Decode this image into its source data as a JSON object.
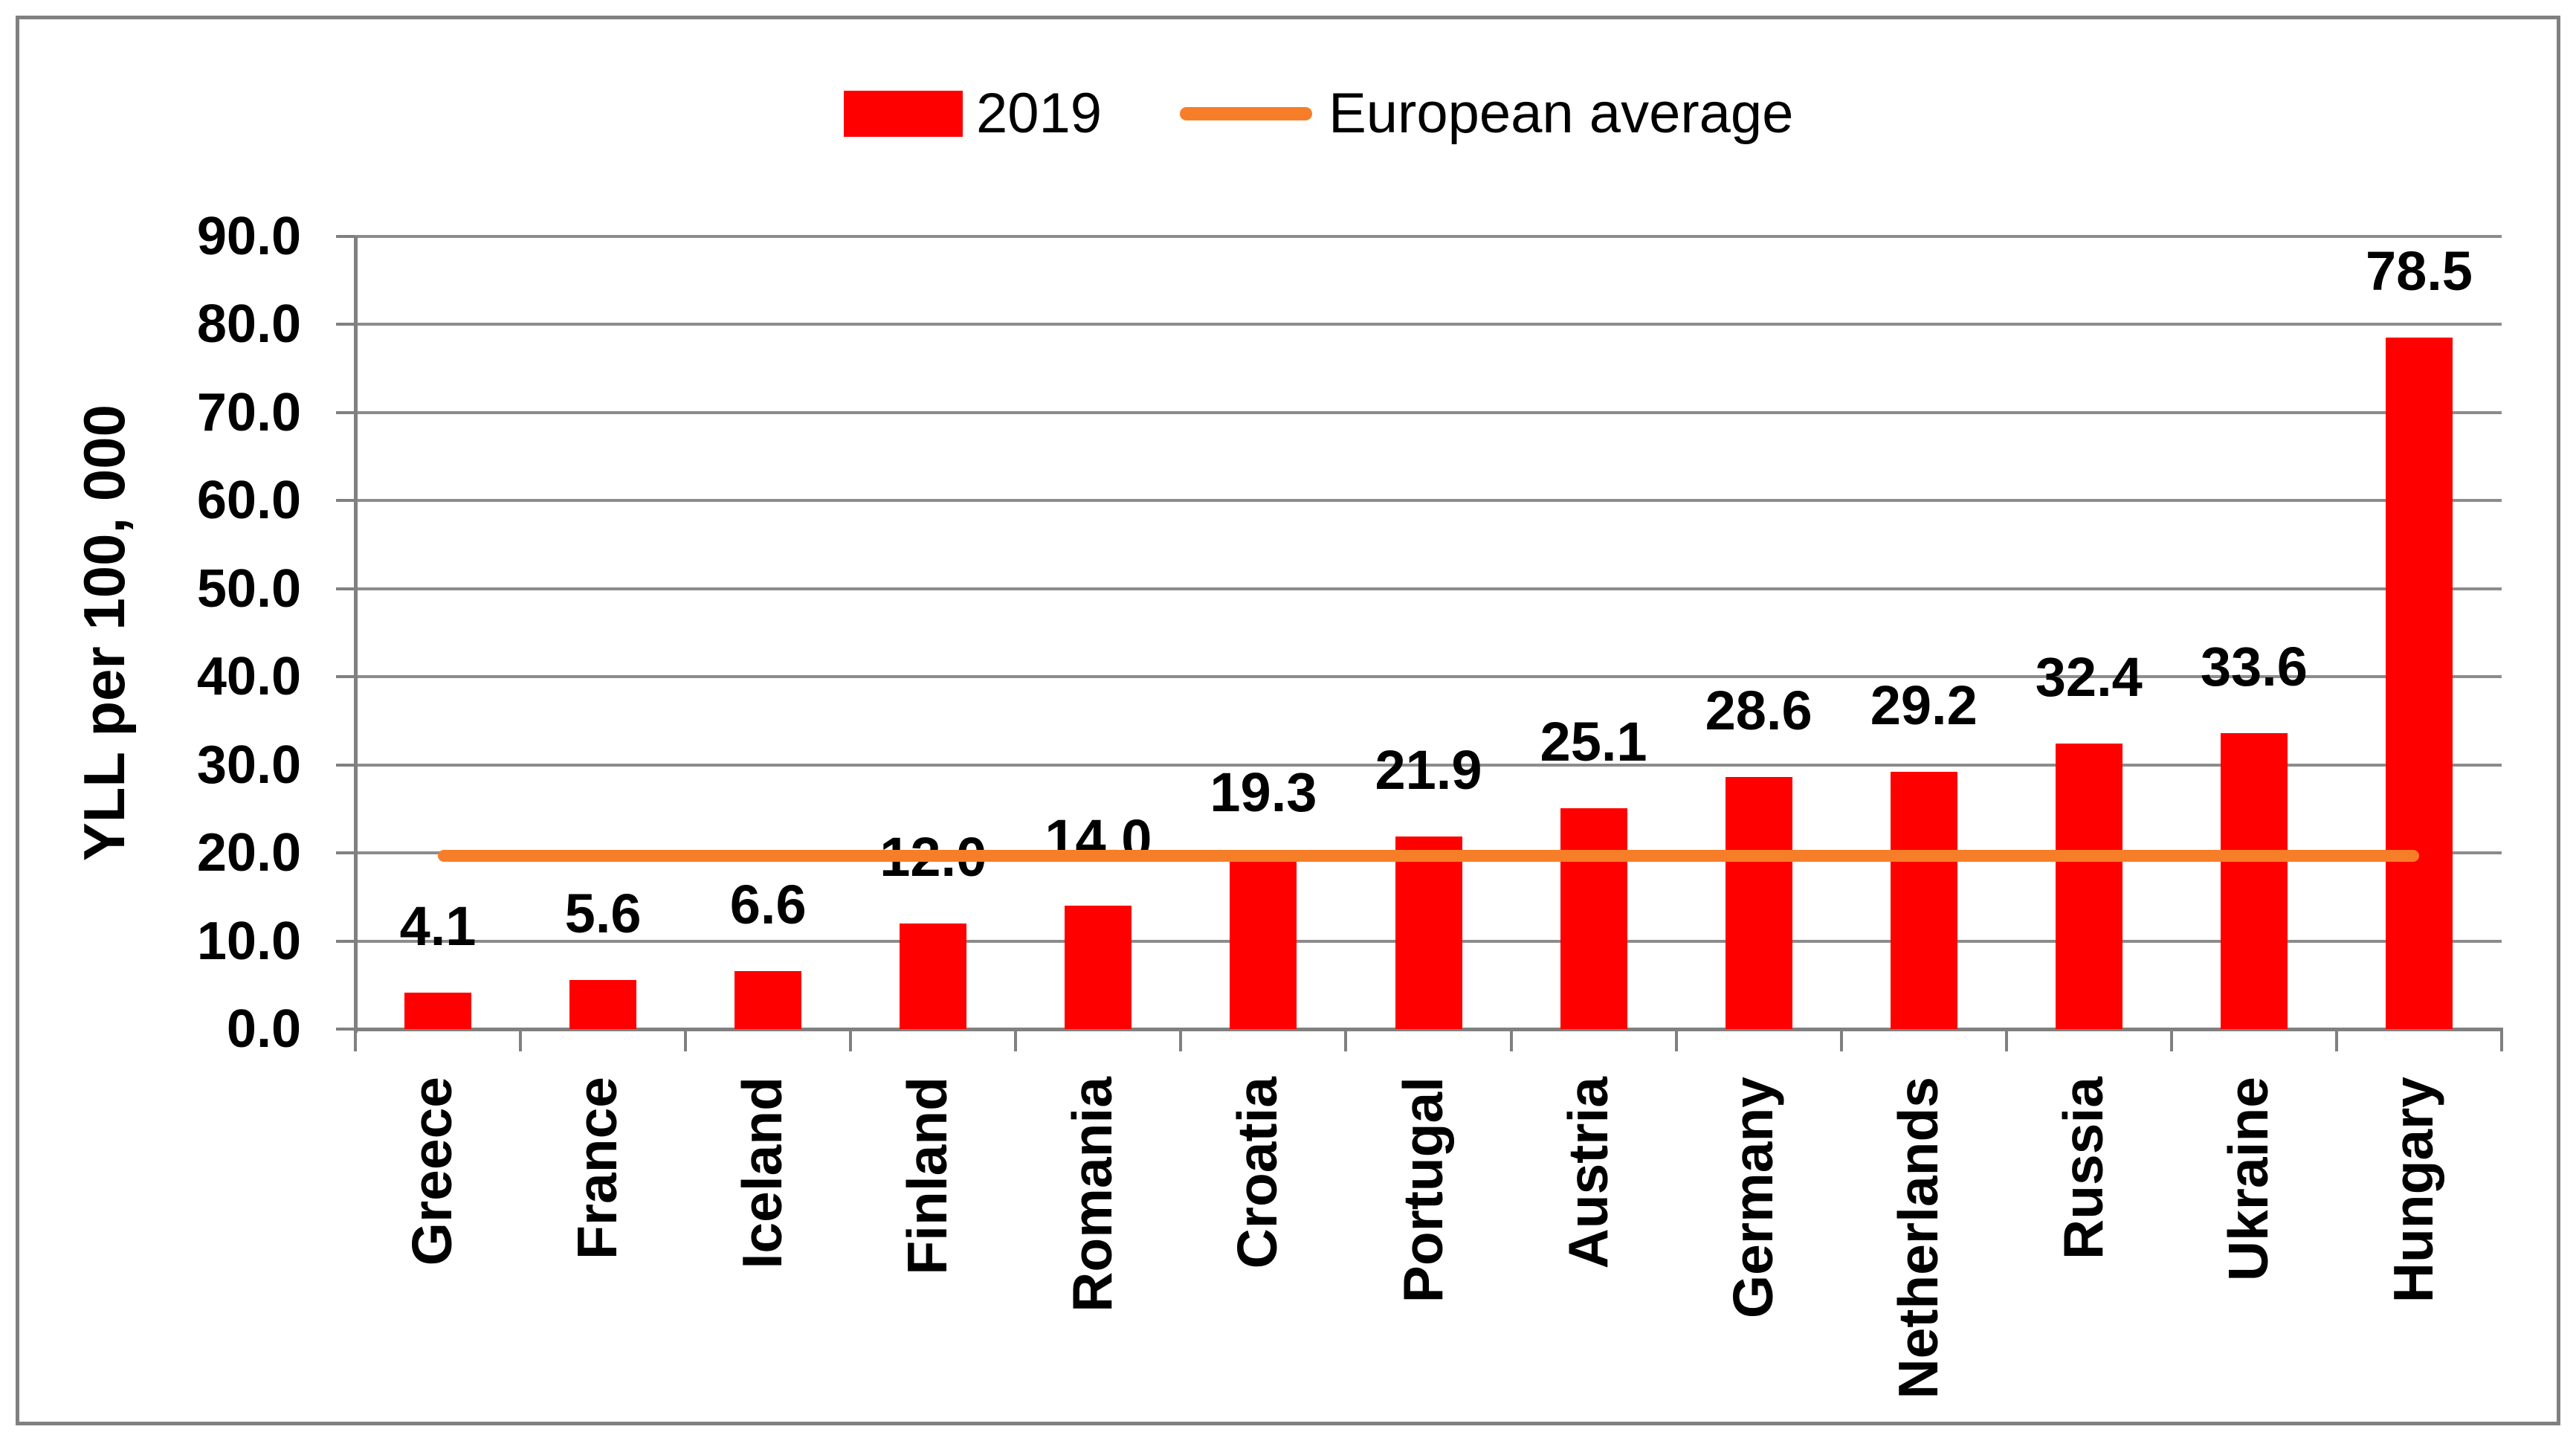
{
  "chart_data": {
    "type": "bar",
    "title": "",
    "categories": [
      "Greece",
      "France",
      "Iceland",
      "Finland",
      "Romania",
      "Croatia",
      "Portugal",
      "Austria",
      "Germany",
      "Netherlands",
      "Russia",
      "Ukraine",
      "Hungary"
    ],
    "series": [
      {
        "name": "2019",
        "values": [
          4.1,
          5.6,
          6.6,
          12.0,
          14.0,
          19.3,
          21.9,
          25.1,
          28.6,
          29.2,
          32.4,
          33.6,
          78.5
        ]
      }
    ],
    "data_labels": [
      "4.1",
      "5.6",
      "6.6",
      "12.0",
      "14.0",
      "19.3",
      "21.9",
      "25.1",
      "28.6",
      "29.2",
      "32.4",
      "33.6",
      "78.5"
    ],
    "reference_line": {
      "name": "European average",
      "value": 19.7
    },
    "xlabel": "",
    "ylabel": "YLL per 100, 000",
    "ylim": [
      0,
      90
    ],
    "ytick_step": 10,
    "ytick_labels": [
      "0.0",
      "10.0",
      "20.0",
      "30.0",
      "40.0",
      "50.0",
      "60.0",
      "70.0",
      "80.0",
      "90.0"
    ],
    "grid": true,
    "legend_position": "top-center"
  },
  "legend": {
    "series_label": "2019",
    "average_label": "European average"
  },
  "colors": {
    "bar": "#FF0000",
    "average_line": "#F77E28",
    "gridline": "#8C8C8C",
    "axis": "#808080",
    "frame_border": "#808080",
    "text": "#000000",
    "background": "#FFFFFF"
  }
}
